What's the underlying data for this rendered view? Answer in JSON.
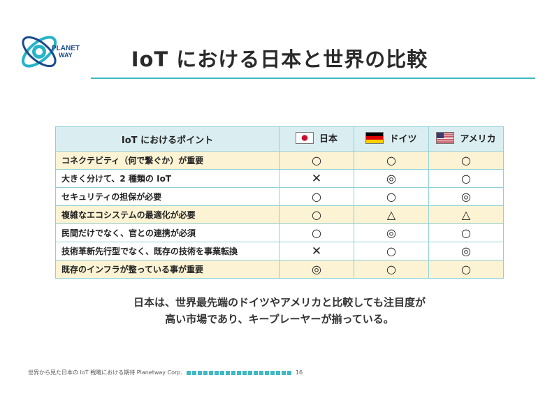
{
  "logo": {
    "text_line1": "PLANET",
    "text_line2": "WAY",
    "colors": {
      "primary": "#27b3c8",
      "secondary": "#1a4a8a"
    }
  },
  "title": "IoT における日本と世界の比較",
  "table": {
    "header": {
      "point": "IoT におけるポイント",
      "columns": [
        {
          "name": "日本",
          "flag_icon": "japan-flag-icon"
        },
        {
          "name": "ドイツ",
          "flag_icon": "germany-flag-icon"
        },
        {
          "name": "アメリカ",
          "flag_icon": "usa-flag-icon"
        }
      ]
    },
    "rows": [
      {
        "label": "コネクテビティ（何で繋ぐか）が重要",
        "marks": [
          "○",
          "○",
          "○"
        ]
      },
      {
        "label": "大きく分けて、2 種類の IoT",
        "marks": [
          "✕",
          "◎",
          "○"
        ]
      },
      {
        "label": "セキュリティの担保が必要",
        "marks": [
          "○",
          "○",
          "◎"
        ]
      },
      {
        "label": "複雑なエコシステムの最適化が必要",
        "marks": [
          "○",
          "△",
          "△"
        ]
      },
      {
        "label": "民間だけでなく、官との連携が必須",
        "marks": [
          "○",
          "◎",
          "○"
        ]
      },
      {
        "label": "技術革新先行型でなく、既存の技術を事業転換",
        "marks": [
          "✕",
          "○",
          "◎"
        ]
      },
      {
        "label": "既存のインフラが整っている事が重要",
        "marks": [
          "◎",
          "○",
          "○"
        ]
      }
    ]
  },
  "summary": {
    "line1": "日本は、世界最先端のドイツやアメリカと比較しても注目度が",
    "line2": "高い市場であり、キープレーヤーが揃っている。"
  },
  "footer": {
    "text": "世界から見た日本の IoT 戦略における期待 Planetway Corp.",
    "page_number": "16",
    "accent_color": "#3fb9c4"
  }
}
